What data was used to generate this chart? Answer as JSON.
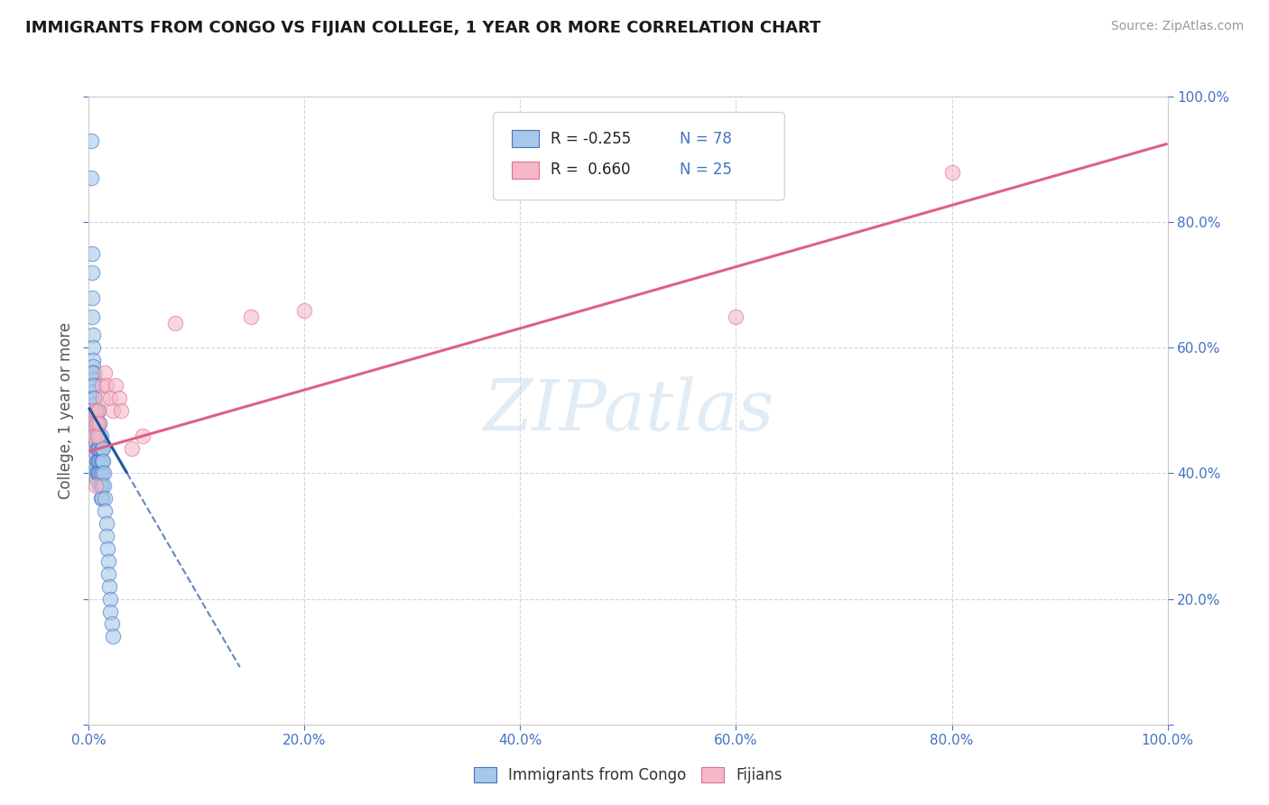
{
  "title": "IMMIGRANTS FROM CONGO VS FIJIAN COLLEGE, 1 YEAR OR MORE CORRELATION CHART",
  "source_text": "Source: ZipAtlas.com",
  "ylabel": "College, 1 year or more",
  "xlim": [
    0.0,
    1.0
  ],
  "ylim": [
    0.0,
    1.0
  ],
  "watermark": "ZIPatlas",
  "legend_r1": "R = -0.255",
  "legend_n1": "N = 78",
  "legend_r2": "R =  0.660",
  "legend_n2": "N = 25",
  "color_blue": "#a8c8e8",
  "color_pink": "#f4b8c8",
  "color_blue_edge": "#4472c4",
  "color_pink_edge": "#e07090",
  "color_blue_line": "#2155a0",
  "color_pink_line": "#e06080",
  "background_color": "#ffffff",
  "grid_color": "#c8d8e8",
  "tick_color": "#4472c4",
  "label_color": "#555555",
  "blue_scatter": [
    [
      0.002,
      0.93
    ],
    [
      0.002,
      0.87
    ],
    [
      0.003,
      0.75
    ],
    [
      0.003,
      0.72
    ],
    [
      0.003,
      0.68
    ],
    [
      0.003,
      0.65
    ],
    [
      0.004,
      0.62
    ],
    [
      0.004,
      0.6
    ],
    [
      0.004,
      0.58
    ],
    [
      0.004,
      0.57
    ],
    [
      0.005,
      0.56
    ],
    [
      0.005,
      0.55
    ],
    [
      0.005,
      0.54
    ],
    [
      0.005,
      0.53
    ],
    [
      0.005,
      0.52
    ],
    [
      0.005,
      0.51
    ],
    [
      0.006,
      0.5
    ],
    [
      0.006,
      0.49
    ],
    [
      0.006,
      0.48
    ],
    [
      0.006,
      0.47
    ],
    [
      0.006,
      0.46
    ],
    [
      0.006,
      0.45
    ],
    [
      0.007,
      0.44
    ],
    [
      0.007,
      0.43
    ],
    [
      0.007,
      0.42
    ],
    [
      0.007,
      0.41
    ],
    [
      0.007,
      0.4
    ],
    [
      0.007,
      0.39
    ],
    [
      0.008,
      0.5
    ],
    [
      0.008,
      0.48
    ],
    [
      0.008,
      0.46
    ],
    [
      0.008,
      0.44
    ],
    [
      0.008,
      0.42
    ],
    [
      0.008,
      0.4
    ],
    [
      0.009,
      0.5
    ],
    [
      0.009,
      0.48
    ],
    [
      0.009,
      0.46
    ],
    [
      0.009,
      0.44
    ],
    [
      0.009,
      0.42
    ],
    [
      0.009,
      0.4
    ],
    [
      0.01,
      0.48
    ],
    [
      0.01,
      0.46
    ],
    [
      0.01,
      0.44
    ],
    [
      0.01,
      0.42
    ],
    [
      0.01,
      0.4
    ],
    [
      0.01,
      0.38
    ],
    [
      0.011,
      0.46
    ],
    [
      0.011,
      0.44
    ],
    [
      0.011,
      0.42
    ],
    [
      0.011,
      0.4
    ],
    [
      0.011,
      0.38
    ],
    [
      0.011,
      0.36
    ],
    [
      0.012,
      0.44
    ],
    [
      0.012,
      0.42
    ],
    [
      0.012,
      0.4
    ],
    [
      0.012,
      0.38
    ],
    [
      0.012,
      0.36
    ],
    [
      0.013,
      0.44
    ],
    [
      0.013,
      0.42
    ],
    [
      0.014,
      0.4
    ],
    [
      0.014,
      0.38
    ],
    [
      0.015,
      0.36
    ],
    [
      0.015,
      0.34
    ],
    [
      0.016,
      0.32
    ],
    [
      0.016,
      0.3
    ],
    [
      0.017,
      0.28
    ],
    [
      0.018,
      0.26
    ],
    [
      0.018,
      0.24
    ],
    [
      0.019,
      0.22
    ],
    [
      0.02,
      0.2
    ],
    [
      0.02,
      0.18
    ],
    [
      0.021,
      0.16
    ],
    [
      0.022,
      0.14
    ],
    [
      0.003,
      0.56
    ],
    [
      0.004,
      0.54
    ],
    [
      0.005,
      0.52
    ],
    [
      0.006,
      0.5
    ],
    [
      0.007,
      0.48
    ]
  ],
  "pink_scatter": [
    [
      0.003,
      0.5
    ],
    [
      0.004,
      0.48
    ],
    [
      0.005,
      0.46
    ],
    [
      0.006,
      0.5
    ],
    [
      0.007,
      0.48
    ],
    [
      0.008,
      0.46
    ],
    [
      0.009,
      0.5
    ],
    [
      0.01,
      0.48
    ],
    [
      0.012,
      0.54
    ],
    [
      0.013,
      0.52
    ],
    [
      0.015,
      0.56
    ],
    [
      0.016,
      0.54
    ],
    [
      0.02,
      0.52
    ],
    [
      0.022,
      0.5
    ],
    [
      0.025,
      0.54
    ],
    [
      0.028,
      0.52
    ],
    [
      0.03,
      0.5
    ],
    [
      0.04,
      0.44
    ],
    [
      0.05,
      0.46
    ],
    [
      0.08,
      0.64
    ],
    [
      0.15,
      0.65
    ],
    [
      0.2,
      0.66
    ],
    [
      0.6,
      0.65
    ],
    [
      0.8,
      0.88
    ],
    [
      0.006,
      0.38
    ]
  ],
  "blue_line_x0": 0.0,
  "blue_line_y0": 0.505,
  "blue_line_x1": 0.022,
  "blue_line_y1": 0.44,
  "blue_line_xend": 0.14,
  "blue_line_yend": 0.12,
  "pink_line_x0": 0.0,
  "pink_line_y0": 0.435,
  "pink_line_x1": 1.0,
  "pink_line_y1": 0.925,
  "footer_label1": "Immigrants from Congo",
  "footer_label2": "Fijians"
}
